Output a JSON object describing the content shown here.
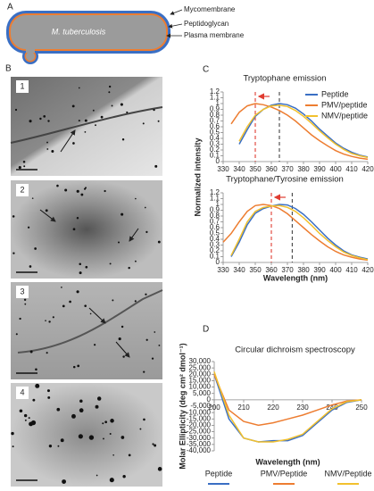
{
  "panel_labels": [
    "A",
    "B",
    "C",
    "D"
  ],
  "diagram": {
    "cell": "M. tuberculosis",
    "layers": [
      "Mycomembrane",
      "Peptidoglycan",
      "Plasma membrane"
    ]
  },
  "micrographs": [
    "1",
    "2",
    "3",
    "4"
  ],
  "chart_data": [
    {
      "type": "line",
      "title": "Tryptophane emission",
      "ylabel": "Normalized intensity",
      "x": [
        335,
        340,
        345,
        350,
        355,
        360,
        365,
        370,
        375,
        380,
        385,
        390,
        395,
        400,
        405,
        410,
        415,
        420
      ],
      "series": [
        {
          "name": "Peptide",
          "color": "#3a6fc4",
          "values": [
            null,
            0.3,
            0.55,
            0.78,
            0.9,
            0.97,
            1.0,
            0.98,
            0.92,
            0.82,
            0.7,
            0.56,
            0.44,
            0.32,
            0.23,
            0.16,
            0.11,
            0.08
          ]
        },
        {
          "name": "PMV/peptide",
          "color": "#ed7d31",
          "values": [
            0.65,
            0.85,
            0.96,
            1.0,
            0.98,
            0.94,
            0.88,
            0.8,
            0.7,
            0.58,
            0.46,
            0.36,
            0.27,
            0.19,
            0.13,
            0.09,
            0.06,
            0.04
          ]
        },
        {
          "name": "NMV/peptide",
          "color": "#f2c12e",
          "values": [
            null,
            0.35,
            0.6,
            0.8,
            0.9,
            0.96,
            0.97,
            0.95,
            0.88,
            0.78,
            0.66,
            0.53,
            0.41,
            0.3,
            0.21,
            0.14,
            0.1,
            0.07
          ]
        }
      ],
      "reference_lines": [
        {
          "x": 350,
          "color": "#e03c31"
        },
        {
          "x": 365,
          "color": "#444444"
        }
      ],
      "xlim": [
        330,
        420
      ],
      "xticks": [
        330,
        340,
        350,
        360,
        370,
        380,
        390,
        400,
        410,
        420
      ],
      "ylim": [
        0,
        1.2
      ],
      "yticks": [
        0,
        0.1,
        0.2,
        0.3,
        0.4,
        0.5,
        0.6,
        0.7,
        0.8,
        0.9,
        1,
        1.1,
        1.2
      ],
      "legend": "top-right"
    },
    {
      "type": "line",
      "title": "Tryptophane/Tyrosine emission",
      "xlabel": "Wavelength (nm)",
      "x": [
        330,
        335,
        340,
        345,
        350,
        355,
        360,
        365,
        370,
        375,
        380,
        385,
        390,
        395,
        400,
        405,
        410,
        415,
        420
      ],
      "series": [
        {
          "color": "#3a6fc4",
          "values": [
            null,
            0.1,
            0.35,
            0.65,
            0.85,
            0.93,
            0.97,
            1.0,
            0.99,
            0.93,
            0.83,
            0.7,
            0.56,
            0.42,
            0.3,
            0.2,
            0.13,
            0.09,
            0.06
          ]
        },
        {
          "color": "#ed7d31",
          "values": [
            0.35,
            0.5,
            0.7,
            0.88,
            0.98,
            1.0,
            0.98,
            0.93,
            0.84,
            0.72,
            0.6,
            0.48,
            0.37,
            0.27,
            0.19,
            0.13,
            0.09,
            0.06,
            0.04
          ]
        },
        {
          "color": "#f2c12e",
          "values": [
            null,
            0.12,
            0.4,
            0.7,
            0.88,
            0.95,
            0.97,
            0.98,
            0.95,
            0.88,
            0.77,
            0.64,
            0.5,
            0.38,
            0.27,
            0.18,
            0.12,
            0.08,
            0.05
          ]
        }
      ],
      "reference_lines": [
        {
          "x": 360,
          "color": "#e03c31"
        },
        {
          "x": 373,
          "color": "#444444"
        }
      ],
      "xlim": [
        330,
        420
      ],
      "xticks": [
        330,
        340,
        350,
        360,
        370,
        380,
        390,
        400,
        410,
        420
      ],
      "ylim": [
        0,
        1.2
      ],
      "yticks": [
        0,
        0.1,
        0.2,
        0.3,
        0.4,
        0.5,
        0.6,
        0.7,
        0.8,
        0.9,
        1,
        1.1,
        1.2
      ]
    },
    {
      "type": "line",
      "title": "Circular dichroism spectroscopy",
      "xlabel": "Wavelength (nm)",
      "ylabel": "Molar Ellipticity (deg cm² dmol⁻¹)",
      "x": [
        200,
        205,
        210,
        215,
        220,
        225,
        230,
        235,
        240,
        245,
        250
      ],
      "series": [
        {
          "name": "Peptide",
          "color": "#3a6fc4",
          "values": [
            20000,
            -15000,
            -30000,
            -33000,
            -32000,
            -32000,
            -28000,
            -18000,
            -8000,
            -2000,
            0
          ]
        },
        {
          "name": "PMV/Peptide",
          "color": "#ed7d31",
          "values": [
            20000,
            -8000,
            -17000,
            -20000,
            -18000,
            -15000,
            -12000,
            -8000,
            -4000,
            -1000,
            0
          ]
        },
        {
          "name": "NMV/Peptide",
          "color": "#f2c12e",
          "values": [
            22000,
            -12000,
            -30000,
            -33000,
            -33000,
            -31000,
            -27000,
            -17000,
            -7000,
            -1500,
            0
          ]
        }
      ],
      "xlim": [
        200,
        250
      ],
      "xticks": [
        200,
        210,
        220,
        230,
        240,
        250
      ],
      "ylim": [
        -40000,
        30000
      ],
      "yticks": [
        {
          "value": 30000,
          "label": "30,000"
        },
        {
          "value": 25000,
          "label": "25,000"
        },
        {
          "value": 20000,
          "label": "20,000"
        },
        {
          "value": 15000,
          "label": "15,000"
        },
        {
          "value": 10000,
          "label": "10,000"
        },
        {
          "value": 5000,
          "label": "5,000"
        },
        0,
        {
          "value": -5000,
          "label": "-5,000"
        },
        {
          "value": -10000,
          "label": "-10,000"
        },
        {
          "value": -15000,
          "label": "-15,000"
        },
        {
          "value": -20000,
          "label": "-20,000"
        },
        {
          "value": -25000,
          "label": "-25,000"
        },
        {
          "value": -30000,
          "label": "-30,000"
        },
        {
          "value": -35000,
          "label": "-35,000"
        },
        {
          "value": -40000,
          "label": "-40,000"
        }
      ],
      "legend": "bottom"
    }
  ]
}
